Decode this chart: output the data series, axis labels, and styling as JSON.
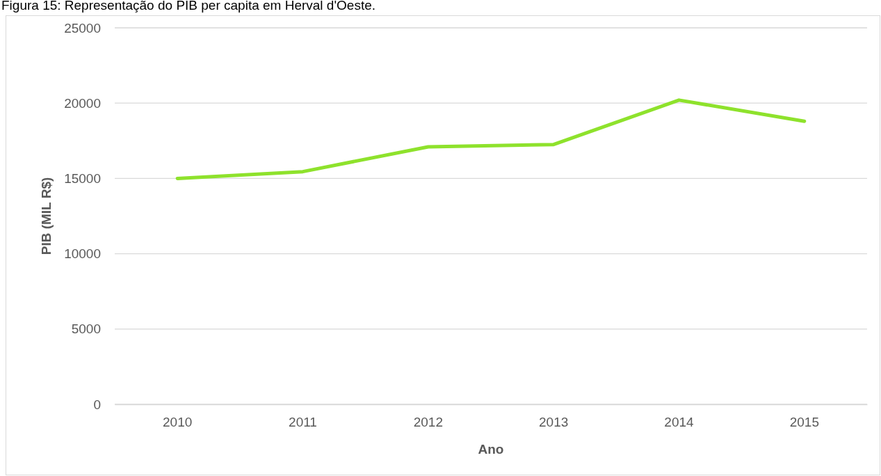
{
  "chart_data": {
    "type": "line",
    "title": "Figura 15: Representação do PIB per capita em Herval d'Oeste.",
    "xlabel": "Ano",
    "ylabel": "PIB (MIL R$)",
    "categories": [
      "2010",
      "2011",
      "2012",
      "2013",
      "2014",
      "2015"
    ],
    "series": [
      {
        "color": "#8ee22c",
        "values": [
          15000,
          15450,
          17100,
          17250,
          20200,
          18800
        ]
      }
    ],
    "ylim": [
      0,
      25000
    ],
    "yticks": [
      0,
      5000,
      10000,
      15000,
      20000,
      25000
    ],
    "grid": "y",
    "marker": "none",
    "line_style": "solid"
  }
}
